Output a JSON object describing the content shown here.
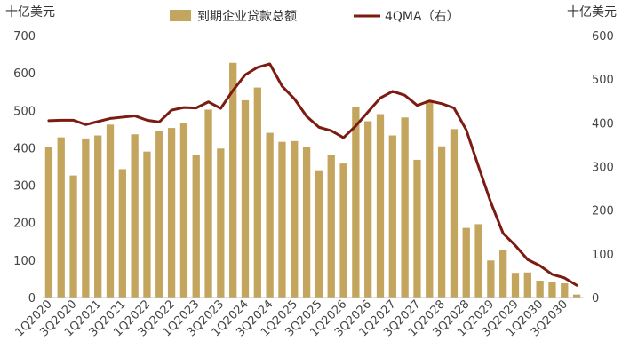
{
  "chart_data": {
    "type": "bar",
    "left_unit": "十亿美元",
    "right_unit": "十亿美元",
    "ylim_left": [
      0,
      700
    ],
    "ylim_right": [
      0,
      600
    ],
    "yticks_left": [
      "0",
      "100",
      "200",
      "300",
      "400",
      "500",
      "600",
      "700"
    ],
    "yticks_right": [
      "0",
      "100",
      "200",
      "300",
      "400",
      "500",
      "600"
    ],
    "xtick_labels": [
      "1Q2020",
      "3Q2020",
      "1Q2021",
      "3Q2021",
      "1Q2022",
      "3Q2022",
      "1Q2023",
      "3Q2023",
      "1Q2024",
      "3Q2024",
      "1Q2025",
      "3Q2025",
      "1Q2026",
      "3Q2026",
      "1Q2027",
      "3Q2027",
      "1Q2028",
      "3Q2028",
      "1Q2029",
      "3Q2029",
      "1Q2030",
      "3Q2030"
    ],
    "categories": [
      "1Q2020",
      "2Q2020",
      "3Q2020",
      "4Q2020",
      "1Q2021",
      "2Q2021",
      "3Q2021",
      "4Q2021",
      "1Q2022",
      "2Q2022",
      "3Q2022",
      "4Q2022",
      "1Q2023",
      "2Q2023",
      "3Q2023",
      "4Q2023",
      "1Q2024",
      "2Q2024",
      "3Q2024",
      "4Q2024",
      "1Q2025",
      "2Q2025",
      "3Q2025",
      "4Q2025",
      "1Q2026",
      "2Q2026",
      "3Q2026",
      "4Q2026",
      "1Q2027",
      "2Q2027",
      "3Q2027",
      "4Q2027",
      "1Q2028",
      "2Q2028",
      "3Q2028",
      "4Q2028",
      "1Q2029",
      "2Q2029",
      "3Q2029",
      "4Q2029",
      "1Q2030",
      "2Q2030",
      "3Q2030",
      "4Q2030"
    ],
    "series": [
      {
        "name": "到期企业贷款总额",
        "type": "bar",
        "axis": "left",
        "color": "#c4a55e",
        "values": [
          402,
          428,
          326,
          425,
          433,
          462,
          343,
          436,
          390,
          444,
          453,
          465,
          381,
          502,
          398,
          627,
          527,
          561,
          440,
          416,
          418,
          401,
          340,
          381,
          358,
          510,
          471,
          490,
          433,
          481,
          368,
          527,
          404,
          450,
          186,
          196,
          99,
          126,
          66,
          67,
          45,
          42,
          38,
          8
        ]
      },
      {
        "name": "4QMA（右）",
        "type": "line",
        "axis": "right",
        "color": "#7b1b11",
        "values": [
          405,
          406,
          406,
          396,
          403,
          410,
          413,
          416,
          406,
          402,
          429,
          435,
          434,
          448,
          433,
          474,
          510,
          527,
          535,
          484,
          455,
          415,
          390,
          382,
          366,
          393,
          425,
          457,
          472,
          463,
          440,
          450,
          444,
          434,
          384,
          300,
          218,
          147,
          119,
          87,
          73,
          53,
          45,
          28
        ]
      }
    ]
  }
}
